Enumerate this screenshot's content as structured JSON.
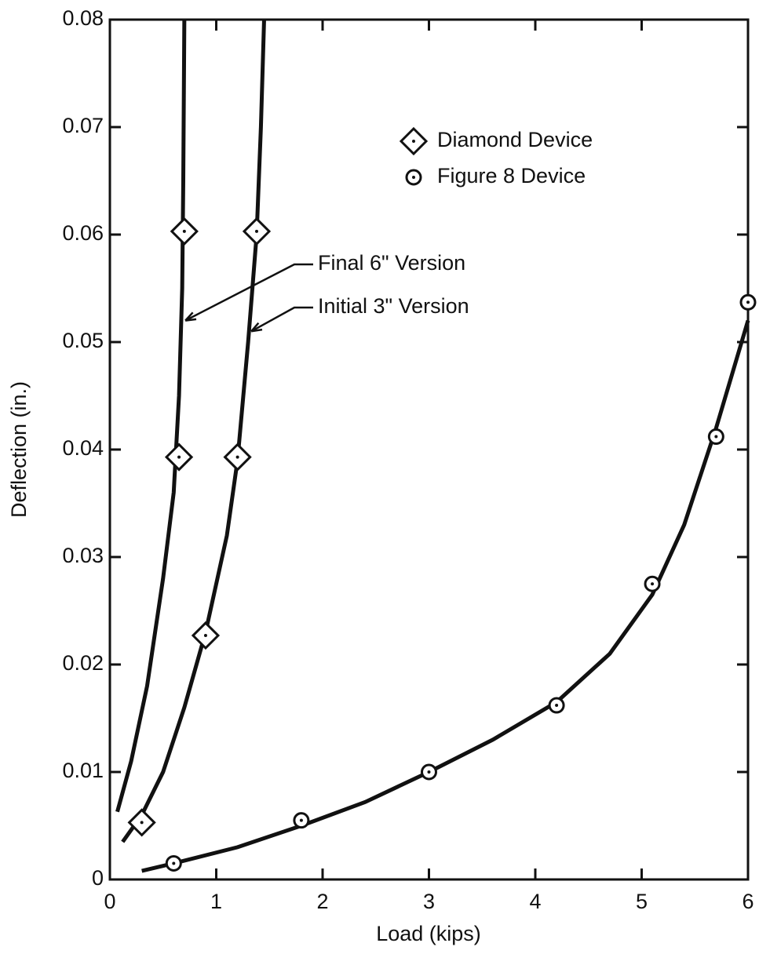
{
  "chart_data": {
    "type": "scatter",
    "x_label": "Load (kips)",
    "y_label": "Deflection (in.)",
    "xlim": [
      0,
      6
    ],
    "ylim": [
      0,
      0.08
    ],
    "xticks": [
      0,
      1,
      2,
      3,
      4,
      5,
      6
    ],
    "yticks": [
      0,
      0.01,
      0.02,
      0.03,
      0.04,
      0.05,
      0.06,
      0.07,
      0.08
    ],
    "legend": "upper right",
    "series": [
      {
        "name": "Diamond Device",
        "marker": "diamond",
        "color": "#111111",
        "x": [
          0.3,
          0.65,
          0.7,
          0.9,
          1.2,
          1.38
        ],
        "values": [
          0.0053,
          0.0393,
          0.0603,
          0.0227,
          0.0393,
          0.0603
        ]
      },
      {
        "name": "Figure 8 Device",
        "marker": "circle",
        "color": "#111111",
        "x": [
          0.6,
          1.8,
          3.0,
          4.2,
          5.1,
          5.7,
          6.0
        ],
        "values": [
          0.0015,
          0.0055,
          0.01,
          0.0162,
          0.0275,
          0.0412,
          0.0537
        ]
      }
    ],
    "curves": [
      {
        "label": "Final 6\" Version",
        "x": [
          0.07,
          0.2,
          0.35,
          0.5,
          0.6,
          0.65,
          0.68,
          0.69,
          0.7
        ],
        "values": [
          0.0063,
          0.011,
          0.018,
          0.028,
          0.036,
          0.045,
          0.055,
          0.065,
          0.08
        ]
      },
      {
        "label": "Initial 3\" Version",
        "x": [
          0.12,
          0.3,
          0.5,
          0.7,
          0.9,
          1.1,
          1.2,
          1.3,
          1.38,
          1.42,
          1.45
        ],
        "values": [
          0.0035,
          0.006,
          0.01,
          0.016,
          0.023,
          0.032,
          0.039,
          0.05,
          0.06,
          0.07,
          0.08
        ]
      },
      {
        "x": [
          0.3,
          0.6,
          1.2,
          1.8,
          2.4,
          3.0,
          3.6,
          4.2,
          4.7,
          5.1,
          5.4,
          5.7,
          6.0
        ],
        "values": [
          0.0008,
          0.0015,
          0.003,
          0.005,
          0.0072,
          0.01,
          0.013,
          0.0165,
          0.021,
          0.0265,
          0.033,
          0.042,
          0.052
        ]
      }
    ]
  }
}
